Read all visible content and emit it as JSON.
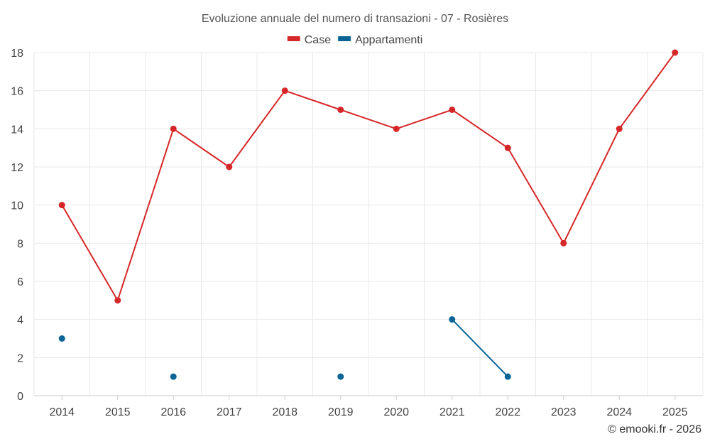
{
  "chart_data": {
    "type": "line",
    "title": "Evoluzione annuale del numero di transazioni - 07 - Rosières",
    "x": [
      "2014",
      "2015",
      "2016",
      "2017",
      "2018",
      "2019",
      "2020",
      "2021",
      "2022",
      "2023",
      "2024",
      "2025"
    ],
    "yticks": [
      "0",
      "2",
      "4",
      "6",
      "8",
      "10",
      "12",
      "14",
      "16",
      "18"
    ],
    "ylim": [
      0,
      18
    ],
    "grid": true,
    "legend_position": "top-center",
    "series": [
      {
        "name": "Case",
        "color": "#d62728",
        "values": [
          10,
          5,
          14,
          12,
          16,
          15,
          14,
          15,
          13,
          8,
          14,
          18
        ]
      },
      {
        "name": "Appartamenti",
        "color": "#0b6496",
        "values": [
          3,
          null,
          1,
          null,
          null,
          1,
          null,
          4,
          1,
          null,
          null,
          null
        ]
      }
    ]
  },
  "footer": {
    "credit": "© emooki.fr - 2026"
  }
}
